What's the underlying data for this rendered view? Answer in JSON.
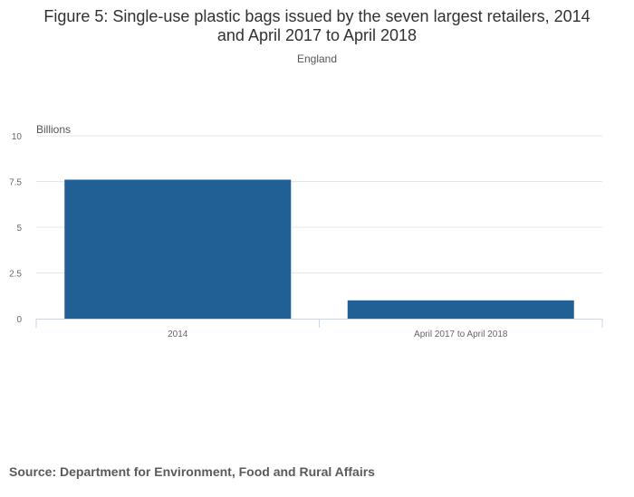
{
  "header": {
    "title_line1": "Figure 5: Single-use plastic bags issued by the seven largest retailers, 2014",
    "title_line2": "and April 2017 to April 2018",
    "subtitle": "England"
  },
  "source": "Source: Department for Environment, Food and Rural Affairs",
  "chart_data": {
    "type": "bar",
    "title": "Figure 5: Single-use plastic bags issued by the seven largest retailers, 2014 and April 2017 to April 2018",
    "subtitle": "England",
    "ylabel": "Billions",
    "xlabel": "",
    "categories": [
      "2014",
      "April 2017 to April 2018"
    ],
    "values": [
      7.6,
      1.0
    ],
    "ylim": [
      0,
      10
    ],
    "yticks": [
      "0",
      "2.5",
      "5",
      "7.5",
      "10"
    ],
    "ytick_values": [
      0,
      2.5,
      5,
      7.5,
      10
    ],
    "grid": true,
    "bar_color": "#206095"
  }
}
